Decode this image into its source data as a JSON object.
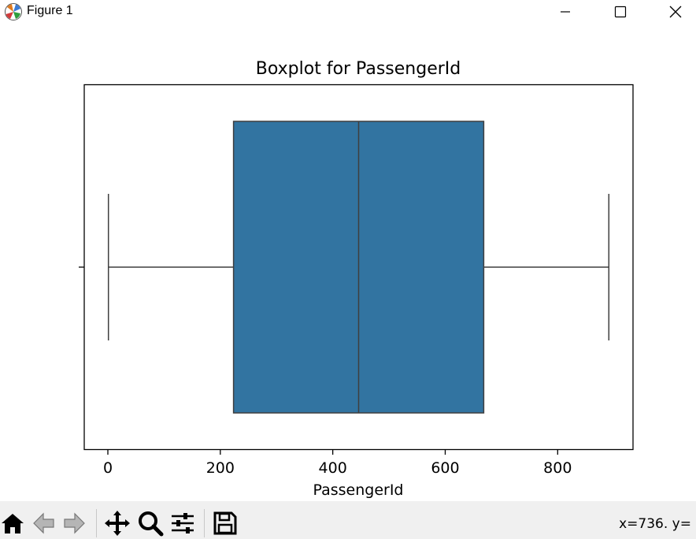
{
  "window": {
    "title": "Figure 1",
    "app_icon": "matplotlib-icon",
    "controls": [
      "minimize-icon",
      "maximize-icon",
      "close-icon"
    ]
  },
  "toolbar": {
    "buttons": [
      "home-icon",
      "back-icon",
      "forward-icon",
      "pan-icon",
      "zoom-icon",
      "configure-subplots-icon",
      "save-icon"
    ],
    "coords_text": "x=736. y="
  },
  "chart_data": {
    "type": "boxplot",
    "title": "Boxplot for PassengerId",
    "xlabel": "PassengerId",
    "ylabel": "",
    "orientation": "horizontal",
    "xlim": [
      -42,
      934
    ],
    "xticks": [
      0,
      200,
      400,
      600,
      800
    ],
    "xtick_labels": [
      "0",
      "200",
      "400",
      "600",
      "800"
    ],
    "grid": false,
    "box": {
      "whisker_low": 1,
      "q1": 223.5,
      "median": 446,
      "q3": 668.5,
      "whisker_high": 891,
      "color": "#3274a1",
      "edge_color": "#3f3f3f"
    }
  }
}
